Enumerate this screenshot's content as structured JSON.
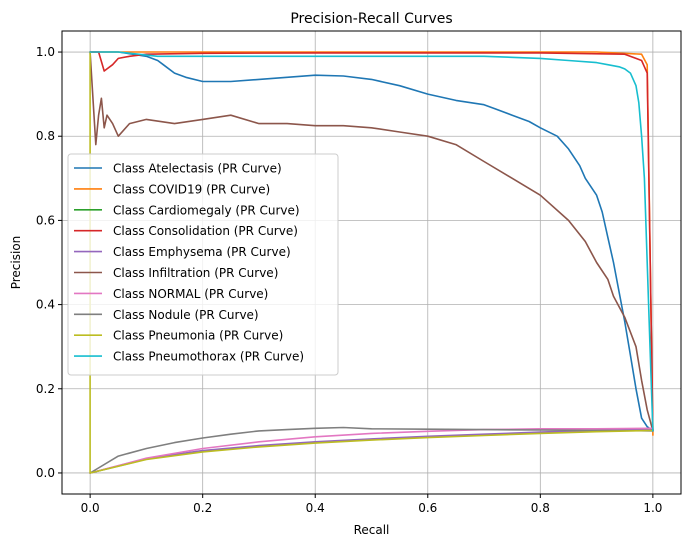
{
  "chart_data": {
    "type": "line",
    "title": "Precision-Recall Curves",
    "xlabel": "Recall",
    "ylabel": "Precision",
    "xlim": [
      -0.05,
      1.05
    ],
    "ylim": [
      -0.05,
      1.05
    ],
    "xticks": [
      "0.0",
      "0.2",
      "0.4",
      "0.6",
      "0.8",
      "1.0"
    ],
    "yticks": [
      "0.0",
      "0.2",
      "0.4",
      "0.6",
      "0.8",
      "1.0"
    ],
    "grid": true,
    "legend_position": "center-left",
    "series": [
      {
        "name": "Class Atelectasis (PR Curve)",
        "color": "#1f77b4",
        "x": [
          0.0,
          0.01,
          0.05,
          0.1,
          0.12,
          0.13,
          0.15,
          0.17,
          0.2,
          0.25,
          0.3,
          0.35,
          0.4,
          0.45,
          0.5,
          0.55,
          0.6,
          0.65,
          0.7,
          0.72,
          0.75,
          0.78,
          0.8,
          0.83,
          0.85,
          0.87,
          0.88,
          0.9,
          0.91,
          0.92,
          0.93,
          0.94,
          0.95,
          0.96,
          0.97,
          0.98,
          0.99,
          1.0
        ],
        "y": [
          1.0,
          1.0,
          1.0,
          0.99,
          0.98,
          0.97,
          0.95,
          0.94,
          0.93,
          0.93,
          0.935,
          0.94,
          0.945,
          0.943,
          0.935,
          0.92,
          0.9,
          0.885,
          0.875,
          0.865,
          0.85,
          0.835,
          0.82,
          0.8,
          0.77,
          0.73,
          0.7,
          0.66,
          0.62,
          0.56,
          0.5,
          0.43,
          0.36,
          0.28,
          0.2,
          0.13,
          0.11,
          0.1
        ]
      },
      {
        "name": "Class COVID19 (PR Curve)",
        "color": "#ff7f0e",
        "x": [
          0.0,
          0.1,
          0.3,
          0.5,
          0.7,
          0.9,
          0.98,
          0.99,
          1.0
        ],
        "y": [
          1.0,
          1.0,
          1.0,
          1.0,
          1.0,
          1.0,
          0.995,
          0.97,
          0.09
        ]
      },
      {
        "name": "Class Cardiomegaly (PR Curve)",
        "color": "#2ca02c",
        "x": [
          0.0,
          0.1,
          0.2,
          0.3,
          0.4,
          0.5,
          0.6,
          0.7,
          0.8,
          0.9,
          1.0
        ],
        "y": [
          0.0,
          0.033,
          0.052,
          0.064,
          0.073,
          0.08,
          0.086,
          0.091,
          0.096,
          0.1,
          0.103
        ]
      },
      {
        "name": "Class Consolidation (PR Curve)",
        "color": "#d62728",
        "x": [
          0.0,
          0.005,
          0.015,
          0.025,
          0.03,
          0.04,
          0.05,
          0.07,
          0.1,
          0.2,
          0.4,
          0.6,
          0.8,
          0.95,
          0.98,
          0.99,
          1.0
        ],
        "y": [
          1.0,
          1.0,
          1.0,
          0.955,
          0.96,
          0.97,
          0.985,
          0.99,
          0.995,
          0.997,
          0.998,
          0.998,
          0.998,
          0.995,
          0.98,
          0.95,
          0.1
        ]
      },
      {
        "name": "Class Emphysema (PR Curve)",
        "color": "#9467bd",
        "x": [
          0.0,
          0.1,
          0.2,
          0.3,
          0.4,
          0.5,
          0.6,
          0.7,
          0.8,
          0.9,
          1.0
        ],
        "y": [
          0.0,
          0.034,
          0.053,
          0.065,
          0.074,
          0.081,
          0.087,
          0.092,
          0.097,
          0.101,
          0.104
        ]
      },
      {
        "name": "Class Infiltration (PR Curve)",
        "color": "#8c564b",
        "x": [
          0.0,
          0.01,
          0.015,
          0.02,
          0.025,
          0.03,
          0.04,
          0.05,
          0.07,
          0.1,
          0.15,
          0.2,
          0.25,
          0.3,
          0.35,
          0.4,
          0.45,
          0.5,
          0.55,
          0.6,
          0.65,
          0.7,
          0.75,
          0.8,
          0.85,
          0.88,
          0.9,
          0.92,
          0.93,
          0.95,
          0.97,
          0.98,
          0.99,
          1.0
        ],
        "y": [
          1.0,
          0.78,
          0.85,
          0.89,
          0.82,
          0.85,
          0.83,
          0.8,
          0.83,
          0.84,
          0.83,
          0.84,
          0.85,
          0.83,
          0.83,
          0.825,
          0.825,
          0.82,
          0.81,
          0.8,
          0.78,
          0.74,
          0.7,
          0.66,
          0.6,
          0.55,
          0.5,
          0.46,
          0.42,
          0.37,
          0.3,
          0.22,
          0.15,
          0.1
        ]
      },
      {
        "name": "Class NORMAL (PR Curve)",
        "color": "#e377c2",
        "x": [
          0.0,
          0.1,
          0.2,
          0.3,
          0.4,
          0.5,
          0.6,
          0.7,
          0.8,
          0.9,
          1.0
        ],
        "y": [
          0.0,
          0.035,
          0.058,
          0.074,
          0.086,
          0.094,
          0.099,
          0.103,
          0.105,
          0.105,
          0.106
        ]
      },
      {
        "name": "Class Nodule (PR Curve)",
        "color": "#7f7f7f",
        "x": [
          0.0,
          0.05,
          0.1,
          0.15,
          0.2,
          0.25,
          0.3,
          0.35,
          0.4,
          0.45,
          0.5,
          0.6,
          0.7,
          0.8,
          0.9,
          1.0
        ],
        "y": [
          0.0,
          0.04,
          0.058,
          0.072,
          0.083,
          0.092,
          0.1,
          0.103,
          0.106,
          0.108,
          0.105,
          0.104,
          0.103,
          0.102,
          0.101,
          0.1
        ]
      },
      {
        "name": "Class Pneumonia (PR Curve)",
        "color": "#bcbd22",
        "x": [
          0.0,
          0.0,
          0.1,
          0.2,
          0.3,
          0.4,
          0.5,
          0.6,
          0.7,
          0.8,
          0.9,
          1.0
        ],
        "y": [
          1.0,
          0.0,
          0.032,
          0.05,
          0.062,
          0.071,
          0.078,
          0.084,
          0.089,
          0.094,
          0.098,
          0.101
        ]
      },
      {
        "name": "Class Pneumothorax (PR Curve)",
        "color": "#17becf",
        "x": [
          0.0,
          0.05,
          0.12,
          0.2,
          0.3,
          0.4,
          0.5,
          0.6,
          0.7,
          0.8,
          0.85,
          0.9,
          0.92,
          0.94,
          0.95,
          0.96,
          0.97,
          0.975,
          0.98,
          0.985,
          0.99,
          0.995,
          1.0
        ],
        "y": [
          1.0,
          1.0,
          0.99,
          0.99,
          0.99,
          0.99,
          0.99,
          0.99,
          0.99,
          0.985,
          0.98,
          0.975,
          0.97,
          0.965,
          0.96,
          0.95,
          0.92,
          0.88,
          0.8,
          0.7,
          0.5,
          0.3,
          0.1
        ]
      }
    ]
  }
}
